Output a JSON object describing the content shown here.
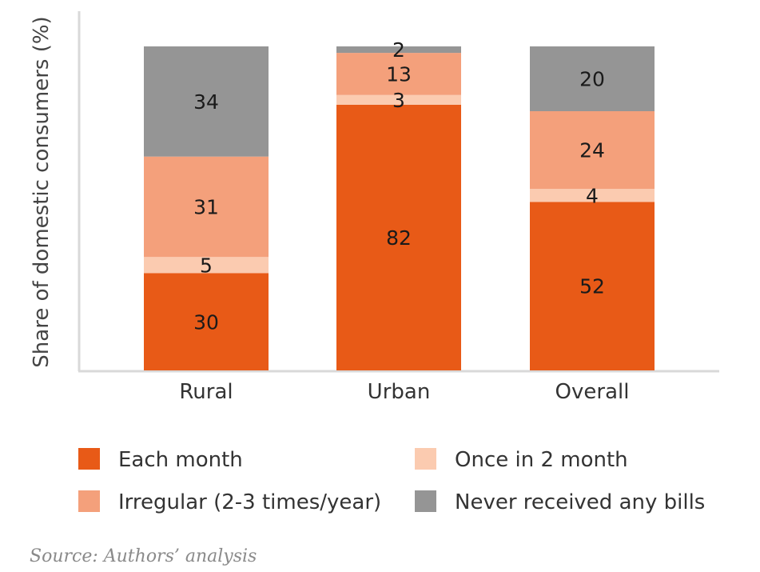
{
  "chart_data": {
    "type": "bar",
    "stacked": true,
    "categories": [
      "Rural",
      "Urban",
      "Overall"
    ],
    "series": [
      {
        "name": "Each month",
        "color": "#e85a17",
        "values": [
          30,
          82,
          52
        ]
      },
      {
        "name": "Once in 2 month",
        "color": "#fbcbb0",
        "values": [
          5,
          3,
          4
        ]
      },
      {
        "name": "Irregular (2-3 times/year)",
        "color": "#f4a07b",
        "values": [
          31,
          13,
          24
        ]
      },
      {
        "name": "Never received any bills",
        "color": "#959595",
        "values": [
          34,
          2,
          20
        ]
      }
    ],
    "title": "",
    "xlabel": "",
    "ylabel": "Share of domestic consumers (%)",
    "ylim": [
      0,
      100
    ],
    "grid": false,
    "legend_position": "bottom"
  },
  "legend": [
    {
      "label": "Each month",
      "color": "#e85a17"
    },
    {
      "label": "Once in 2 month",
      "color": "#fbcbb0"
    },
    {
      "label": "Irregular (2-3 times/year)",
      "color": "#f4a07b"
    },
    {
      "label": "Never received any bills",
      "color": "#959595"
    }
  ],
  "source": "Source: Authors’ analysis"
}
